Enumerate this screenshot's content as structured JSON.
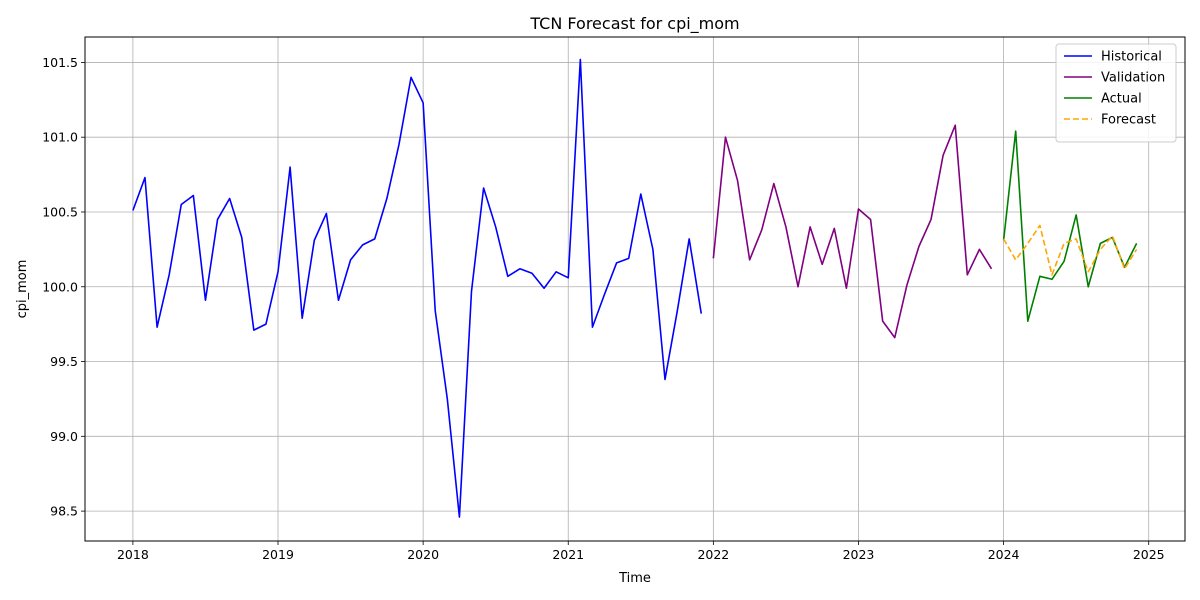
{
  "chart_data": {
    "type": "line",
    "title": "TCN Forecast for cpi_mom",
    "xlabel": "Time",
    "ylabel": "cpi_mom",
    "xlim": [
      2017.67,
      2025.25
    ],
    "ylim": [
      98.3,
      101.67
    ],
    "x_ticks": [
      2018,
      2019,
      2020,
      2021,
      2022,
      2023,
      2024,
      2025
    ],
    "x_tick_labels": [
      "2018",
      "2019",
      "2020",
      "2021",
      "2022",
      "2023",
      "2024",
      "2025"
    ],
    "y_ticks": [
      98.5,
      99.0,
      99.5,
      100.0,
      100.5,
      101.0,
      101.5
    ],
    "y_tick_labels": [
      "98.5",
      "99.0",
      "99.5",
      "100.0",
      "100.5",
      "101.0",
      "101.5"
    ],
    "grid": true,
    "legend_position": "top-right",
    "series": [
      {
        "name": "Historical",
        "color": "#0000ff",
        "dashed": false,
        "start_year": 2018,
        "values": [
          100.51,
          100.73,
          99.73,
          100.08,
          100.55,
          100.61,
          99.91,
          100.45,
          100.59,
          100.33,
          99.71,
          99.75,
          100.1,
          100.8,
          99.79,
          100.31,
          100.49,
          99.91,
          100.18,
          100.28,
          100.32,
          100.59,
          100.95,
          101.4,
          101.23,
          99.84,
          99.25,
          98.46,
          99.97,
          100.66,
          100.4,
          100.07,
          100.12,
          100.09,
          99.99,
          100.1,
          100.06,
          101.52,
          99.73,
          99.95,
          100.16,
          100.19,
          100.62,
          100.25,
          99.38,
          99.83,
          100.32,
          99.82
        ]
      },
      {
        "name": "Validation",
        "color": "#800080",
        "dashed": false,
        "start_year": 2022,
        "values": [
          100.19,
          101.0,
          100.71,
          100.18,
          100.38,
          100.69,
          100.4,
          100.0,
          100.4,
          100.15,
          100.39,
          99.99,
          100.52,
          100.45,
          99.77,
          99.66,
          100.01,
          100.27,
          100.45,
          100.88,
          101.08,
          100.08,
          100.25,
          100.12
        ]
      },
      {
        "name": "Actual",
        "color": "#008000",
        "dashed": false,
        "start_year": 2024,
        "values": [
          100.31,
          101.04,
          99.77,
          100.07,
          100.05,
          100.17,
          100.48,
          100.0,
          100.29,
          100.33,
          100.13,
          100.29
        ]
      },
      {
        "name": "Forecast",
        "color": "#ffa500",
        "dashed": true,
        "start_year": 2024,
        "values": [
          100.32,
          100.18,
          100.29,
          100.41,
          100.08,
          100.29,
          100.32,
          100.1,
          100.25,
          100.34,
          100.12,
          100.25
        ]
      }
    ]
  }
}
